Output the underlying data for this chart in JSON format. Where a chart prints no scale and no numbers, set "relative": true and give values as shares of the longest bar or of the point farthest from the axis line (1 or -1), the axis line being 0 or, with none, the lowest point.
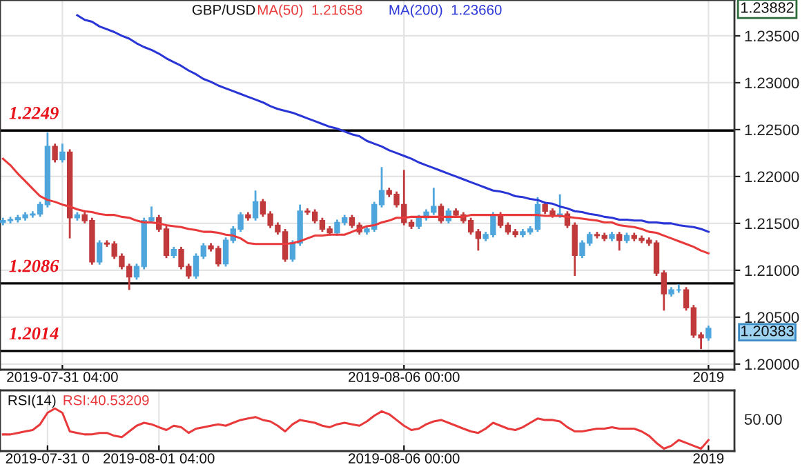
{
  "chart_data": [
    {
      "type": "candlestick",
      "title": "GBP/USD",
      "categories": [
        null,
        null,
        null,
        null,
        null,
        null,
        null,
        null,
        "2019-07-31 04:00",
        null,
        null,
        null,
        null,
        null,
        null,
        null,
        null,
        null,
        null,
        null,
        null,
        null,
        null,
        null,
        null,
        null,
        null,
        null,
        null,
        null,
        null,
        null,
        null,
        null,
        null,
        null,
        null,
        null,
        null,
        null,
        null,
        null,
        null,
        null,
        null,
        null,
        null,
        null,
        null,
        null,
        null,
        null,
        null,
        null,
        "2019-08-06 00:00",
        null,
        null,
        null,
        null,
        null,
        null,
        null,
        null,
        null,
        null,
        null,
        null,
        null,
        null,
        null,
        null,
        null,
        null,
        null,
        null,
        null,
        null,
        null,
        null,
        null,
        null,
        null,
        null,
        null,
        null,
        null,
        null,
        null,
        null,
        null,
        null,
        null,
        null,
        null,
        null,
        "2019"
      ],
      "colors": [
        "#4fa6dc",
        "#4fa6dc",
        "#4fa6dc",
        "#4fa6dc",
        "#4fa6dc",
        "#4fa6dc",
        "#4fa6dc",
        "#c0393b",
        "#4fa6dc",
        "#c0393b",
        "#4fa6dc",
        "#c0393b",
        "#c0393b",
        "#4fa6dc",
        "#c0393b",
        "#c0393b",
        "#c0393b",
        "#c0393b",
        "#4fa6dc",
        "#4fa6dc",
        "#4fa6dc",
        "#c0393b",
        "#c0393b",
        "#4fa6dc",
        "#c0393b",
        "#c0393b",
        "#4fa6dc",
        "#4fa6dc",
        "#c0393b",
        "#c0393b",
        "#4fa6dc",
        "#4fa6dc",
        "#4fa6dc",
        "#c0393b",
        "#4fa6dc",
        "#c0393b",
        "#c0393b",
        "#c0393b",
        "#c0393b",
        "#4fa6dc",
        "#4fa6dc",
        "#c0393b",
        "#c0393b",
        "#c0393b",
        "#c0393b",
        "#4fa6dc",
        "#4fa6dc",
        "#c0393b",
        "#c0393b",
        "#4fa6dc",
        "#4fa6dc",
        "#4fa6dc",
        "#c0393b",
        "#c0393b",
        "#c0393b",
        "#c0393b",
        "#4fa6dc",
        "#4fa6dc",
        "#4fa6dc",
        "#c0393b",
        "#4fa6dc",
        "#c0393b",
        "#c0393b",
        "#c0393b",
        "#c0393b",
        "#4fa6dc",
        "#4fa6dc",
        "#c0393b",
        "#c0393b",
        "#c0393b",
        "#4fa6dc",
        "#4fa6dc",
        "#4fa6dc",
        "#c0393b",
        "#c0393b",
        "#4fa6dc",
        "#c0393b",
        "#c0393b",
        "#4fa6dc",
        "#4fa6dc",
        "#c0393b",
        "#c0393b",
        "#4fa6dc",
        "#c0393b",
        "#4fa6dc",
        "#c0393b",
        "#c0393b",
        "#c0393b",
        "#c0393b",
        "#c0393b",
        "#4fa6dc",
        "#4fa6dc",
        "#c0393b",
        "#c0393b",
        "#c0393b",
        "#4fa6dc"
      ],
      "ohlc": [
        [
          1.2151,
          1.2156,
          1.2148,
          1.2153
        ],
        [
          1.2153,
          1.2157,
          1.215,
          1.2154
        ],
        [
          1.2154,
          1.2159,
          1.2151,
          1.2156
        ],
        [
          1.2156,
          1.2162,
          1.2153,
          1.2159
        ],
        [
          1.2159,
          1.2163,
          1.2156,
          1.216
        ],
        [
          1.216,
          1.2173,
          1.2157,
          1.217
        ],
        [
          1.217,
          1.2247,
          1.2167,
          1.2232
        ],
        [
          1.2232,
          1.2235,
          1.2215,
          1.2218
        ],
        [
          1.2218,
          1.2235,
          1.2215,
          1.2226
        ],
        [
          1.2226,
          1.2229,
          1.2134,
          1.2156
        ],
        [
          1.2156,
          1.2162,
          1.2153,
          1.2159
        ],
        [
          1.2159,
          1.2162,
          1.215,
          1.2153
        ],
        [
          1.2153,
          1.2156,
          1.2106,
          1.2109
        ],
        [
          1.2109,
          1.2132,
          1.2106,
          1.2129
        ],
        [
          1.2129,
          1.2132,
          1.2125,
          1.2128
        ],
        [
          1.2128,
          1.2131,
          1.2112,
          1.2115
        ],
        [
          1.2115,
          1.2118,
          1.2101,
          1.2104
        ],
        [
          1.2104,
          1.2107,
          1.2079,
          1.2093
        ],
        [
          1.2093,
          1.2107,
          1.209,
          1.2104
        ],
        [
          1.2104,
          1.2156,
          1.2101,
          1.2153
        ],
        [
          1.2153,
          1.2168,
          1.215,
          1.2156
        ],
        [
          1.2156,
          1.2159,
          1.2141,
          1.2144
        ],
        [
          1.2144,
          1.2147,
          1.2113,
          1.2116
        ],
        [
          1.2116,
          1.2125,
          1.2113,
          1.2122
        ],
        [
          1.2122,
          1.2125,
          1.2101,
          1.2104
        ],
        [
          1.2104,
          1.2107,
          1.2091,
          1.2094
        ],
        [
          1.2094,
          1.2118,
          1.2091,
          1.2115
        ],
        [
          1.2115,
          1.2129,
          1.2112,
          1.2126
        ],
        [
          1.2126,
          1.2129,
          1.212,
          1.2123
        ],
        [
          1.2123,
          1.2126,
          1.2104,
          1.2107
        ],
        [
          1.2107,
          1.2135,
          1.2104,
          1.2132
        ],
        [
          1.2132,
          1.2147,
          1.2129,
          1.2144
        ],
        [
          1.2144,
          1.2162,
          1.2141,
          1.2159
        ],
        [
          1.2159,
          1.2162,
          1.2153,
          1.2156
        ],
        [
          1.2156,
          1.2185,
          1.2153,
          1.2173
        ],
        [
          1.2173,
          1.2176,
          1.2157,
          1.216
        ],
        [
          1.216,
          1.2163,
          1.2145,
          1.2148
        ],
        [
          1.2148,
          1.2151,
          1.2138,
          1.2141
        ],
        [
          1.2141,
          1.2144,
          1.2109,
          1.2112
        ],
        [
          1.2112,
          1.2132,
          1.2109,
          1.2129
        ],
        [
          1.2129,
          1.217,
          1.2126,
          1.2163
        ],
        [
          1.2163,
          1.2166,
          1.2159,
          1.2162
        ],
        [
          1.2162,
          1.2165,
          1.215,
          1.2153
        ],
        [
          1.2153,
          1.2156,
          1.2141,
          1.2144
        ],
        [
          1.2144,
          1.2147,
          1.2137,
          1.214
        ],
        [
          1.214,
          1.2154,
          1.2137,
          1.2151
        ],
        [
          1.2151,
          1.2159,
          1.2148,
          1.2156
        ],
        [
          1.2156,
          1.2159,
          1.2145,
          1.2148
        ],
        [
          1.2148,
          1.2151,
          1.2138,
          1.2141
        ],
        [
          1.2141,
          1.2147,
          1.2138,
          1.2144
        ],
        [
          1.2144,
          1.2173,
          1.2141,
          1.217
        ],
        [
          1.217,
          1.221,
          1.2167,
          1.2185
        ],
        [
          1.2185,
          1.2188,
          1.2178,
          1.2181
        ],
        [
          1.2181,
          1.2184,
          1.2167,
          1.217
        ],
        [
          1.217,
          1.2207,
          1.2148,
          1.2151
        ],
        [
          1.2151,
          1.2154,
          1.2144,
          1.2147
        ],
        [
          1.2147,
          1.2159,
          1.2144,
          1.2156
        ],
        [
          1.2156,
          1.2165,
          1.2153,
          1.2162
        ],
        [
          1.2162,
          1.2188,
          1.2159,
          1.2168
        ],
        [
          1.2168,
          1.2171,
          1.215,
          1.2153
        ],
        [
          1.2153,
          1.2166,
          1.215,
          1.2163
        ],
        [
          1.2163,
          1.2166,
          1.2156,
          1.2159
        ],
        [
          1.2159,
          1.2162,
          1.215,
          1.2153
        ],
        [
          1.2153,
          1.2156,
          1.2138,
          1.2141
        ],
        [
          1.2141,
          1.2144,
          1.2121,
          1.2134
        ],
        [
          1.2134,
          1.2141,
          1.2131,
          1.2138
        ],
        [
          1.2138,
          1.2162,
          1.2135,
          1.2159
        ],
        [
          1.2159,
          1.2162,
          1.2145,
          1.2148
        ],
        [
          1.2148,
          1.2151,
          1.2138,
          1.2141
        ],
        [
          1.2141,
          1.2144,
          1.2135,
          1.2138
        ],
        [
          1.2138,
          1.2144,
          1.2135,
          1.2141
        ],
        [
          1.2141,
          1.2147,
          1.2138,
          1.2144
        ],
        [
          1.2144,
          1.2178,
          1.2141,
          1.217
        ],
        [
          1.217,
          1.2173,
          1.216,
          1.2163
        ],
        [
          1.2163,
          1.2166,
          1.2156,
          1.2159
        ],
        [
          1.2159,
          1.2181,
          1.2156,
          1.216
        ],
        [
          1.216,
          1.2163,
          1.2145,
          1.2148
        ],
        [
          1.2148,
          1.2151,
          1.2094,
          1.2116
        ],
        [
          1.2116,
          1.2132,
          1.2113,
          1.2129
        ],
        [
          1.2129,
          1.2141,
          1.2126,
          1.2138
        ],
        [
          1.2138,
          1.2141,
          1.2134,
          1.2137
        ],
        [
          1.2137,
          1.214,
          1.2131,
          1.2134
        ],
        [
          1.2134,
          1.2141,
          1.2131,
          1.2138
        ],
        [
          1.2138,
          1.2141,
          1.2121,
          1.2132
        ],
        [
          1.2132,
          1.214,
          1.2129,
          1.2137
        ],
        [
          1.2137,
          1.214,
          1.2131,
          1.2134
        ],
        [
          1.2134,
          1.2137,
          1.2129,
          1.2132
        ],
        [
          1.2132,
          1.2135,
          1.2126,
          1.2129
        ],
        [
          1.2129,
          1.2132,
          1.2094,
          1.2097
        ],
        [
          1.2097,
          1.21,
          1.2057,
          1.2075
        ],
        [
          1.2075,
          1.2082,
          1.2072,
          1.2079
        ],
        [
          1.2079,
          1.2085,
          1.2076,
          1.2079
        ],
        [
          1.2079,
          1.2082,
          1.2057,
          1.206
        ],
        [
          1.206,
          1.2063,
          1.2028,
          1.2031
        ],
        [
          1.2031,
          1.2034,
          1.2016,
          1.2028
        ],
        [
          1.2028,
          1.2041,
          1.2025,
          1.2038
        ]
      ],
      "series": [
        {
          "type": "line",
          "name": "MA(50)  1.21658",
          "color": "#e8393b",
          "values": [
            1.2219,
            1.2212,
            1.2203,
            1.2195,
            1.2187,
            1.2179,
            1.2175,
            1.2173,
            1.217,
            1.2168,
            1.2165,
            1.2163,
            1.2162,
            1.216,
            1.2159,
            1.2159,
            1.2157,
            1.2156,
            1.2153,
            1.2151,
            1.2151,
            1.215,
            1.2148,
            1.2147,
            1.2146,
            1.2144,
            1.2143,
            1.2141,
            1.2141,
            1.214,
            1.2138,
            1.2137,
            1.2134,
            1.2129,
            1.2128,
            1.2128,
            1.2128,
            1.2128,
            1.2128,
            1.2129,
            1.2131,
            1.2134,
            1.2137,
            1.2137,
            1.2138,
            1.2138,
            1.2138,
            1.2141,
            1.2144,
            1.2147,
            1.2148,
            1.2151,
            1.2153,
            1.2156,
            1.2156,
            1.2157,
            1.2157,
            1.2157,
            1.2157,
            1.2157,
            1.2157,
            1.2157,
            1.2157,
            1.2159,
            1.2159,
            1.2159,
            1.2159,
            1.2159,
            1.2159,
            1.2159,
            1.2159,
            1.2159,
            1.2159,
            1.2158,
            1.2158,
            1.2158,
            1.2157,
            1.2156,
            1.2155,
            1.2154,
            1.2153,
            1.2151,
            1.2151,
            1.2148,
            1.2147,
            1.2146,
            1.2144,
            1.2141,
            1.214,
            1.2137,
            1.2134,
            1.2131,
            1.2128,
            1.2125,
            1.2121,
            1.2118
          ]
        },
        {
          "type": "line",
          "name": "MA(200)  1.23660",
          "color": "#2a35d6",
          "values": [
            null,
            null,
            null,
            null,
            null,
            null,
            null,
            null,
            null,
            null,
            1.2372,
            1.2367,
            1.2365,
            1.236,
            1.2357,
            1.2354,
            1.235,
            1.2347,
            1.2342,
            1.2338,
            1.2335,
            1.2331,
            1.2326,
            1.2322,
            1.2318,
            1.2313,
            1.2309,
            1.2304,
            1.2301,
            1.2297,
            1.2294,
            1.2291,
            1.2288,
            1.2285,
            1.2282,
            1.2279,
            1.2275,
            1.2272,
            1.227,
            1.2268,
            1.2265,
            1.2262,
            1.2259,
            1.2256,
            1.2253,
            1.2251,
            1.2248,
            1.2245,
            1.2243,
            1.2238,
            1.2235,
            1.2232,
            1.2228,
            1.2225,
            1.2222,
            1.2219,
            1.2215,
            1.2212,
            1.2209,
            1.2206,
            1.2203,
            1.22,
            1.2197,
            1.2194,
            1.2191,
            1.2188,
            1.2185,
            1.2184,
            1.2182,
            1.2179,
            1.2178,
            1.2176,
            1.2175,
            1.2172,
            1.2171,
            1.2168,
            1.2166,
            1.2163,
            1.2162,
            1.216,
            1.2159,
            1.2157,
            1.2156,
            1.2154,
            1.2154,
            1.2153,
            1.2153,
            1.2151,
            1.2151,
            1.215,
            1.215,
            1.2148,
            1.2147,
            1.2146,
            1.2144,
            1.2141
          ]
        }
      ],
      "ylim": [
        1.1994,
        1.23882
      ],
      "yticks": [
        {
          "value": 1.2,
          "label": "1.20000"
        },
        {
          "value": 1.205,
          "label": "1.20500"
        },
        {
          "value": 1.21,
          "label": "1.21000"
        },
        {
          "value": 1.215,
          "label": "1.21500"
        },
        {
          "value": 1.22,
          "label": "1.22000"
        },
        {
          "value": 1.225,
          "label": "1.22500"
        },
        {
          "value": 1.23,
          "label": "1.23000"
        },
        {
          "value": 1.235,
          "label": "1.23500"
        }
      ],
      "ref_lines": [
        {
          "axis": "y",
          "value": 1.2249,
          "label": "1.2249",
          "color": "#000000"
        },
        {
          "axis": "y",
          "value": 1.2086,
          "label": "1.2086",
          "color": "#000000"
        },
        {
          "axis": "y",
          "value": 1.2014,
          "label": "1.2014",
          "color": "#000000"
        }
      ],
      "annotations": [
        "1.23882",
        "1.20383"
      ],
      "grid": true
    },
    {
      "type": "line",
      "title": "RSI(14)",
      "relative": true,
      "categories": [
        null,
        null,
        null,
        null,
        null,
        null,
        "2019-07-31 0",
        null,
        null,
        null,
        null,
        null,
        null,
        null,
        null,
        null,
        null,
        null,
        null,
        null,
        null,
        "2019-08-01 04:00",
        null,
        null,
        null,
        null,
        null,
        null,
        null,
        null,
        null,
        null,
        null,
        null,
        null,
        null,
        null,
        null,
        null,
        null,
        null,
        null,
        null,
        null,
        null,
        null,
        null,
        null,
        null,
        null,
        null,
        null,
        null,
        null,
        "2019-08-06 00:00",
        null,
        null,
        null,
        null,
        null,
        null,
        null,
        null,
        null,
        null,
        null,
        null,
        null,
        null,
        null,
        null,
        null,
        null,
        null,
        null,
        null,
        null,
        null,
        null,
        null,
        null,
        null,
        null,
        null,
        null,
        null,
        null,
        null,
        null,
        null,
        null,
        null,
        null,
        null,
        null,
        "2019"
      ],
      "series": [
        {
          "name": "RSI:40.53209",
          "color": "#e8393b",
          "values": [
            0.354,
            0.354,
            0.392,
            0.429,
            0.463,
            0.606,
            0.892,
            1,
            0.892,
            0.429,
            0.392,
            0.354,
            0.355,
            0.392,
            0.392,
            0.32,
            0.286,
            0.429,
            0.571,
            0.643,
            0.606,
            0.534,
            0.463,
            0.571,
            0.534,
            0.392,
            0.497,
            0.534,
            0.571,
            0.606,
            0.571,
            0.643,
            0.714,
            0.749,
            0.786,
            0.714,
            0.677,
            0.571,
            0.429,
            0.606,
            0.714,
            0.677,
            0.643,
            0.571,
            0.534,
            0.606,
            0.643,
            0.606,
            0.571,
            0.677,
            0.82,
            0.929,
            0.857,
            0.714,
            0.571,
            0.463,
            0.497,
            0.606,
            0.677,
            0.714,
            0.643,
            0.571,
            0.497,
            0.429,
            0.392,
            0.497,
            0.643,
            0.571,
            0.497,
            0.463,
            0.534,
            0.643,
            0.749,
            0.714,
            0.714,
            0.677,
            0.534,
            0.429,
            0.429,
            0.463,
            0.497,
            0.497,
            0.534,
            0.497,
            0.497,
            0.497,
            0.429,
            0.32,
            0.143,
            0,
            0.071,
            0.214,
            0.143,
            0.071,
            0,
            0.214
          ]
        }
      ],
      "annotations": [
        "50.00"
      ],
      "grid": true
    }
  ]
}
